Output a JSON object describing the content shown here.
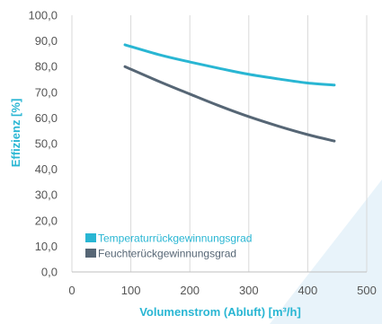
{
  "chart_data": {
    "type": "line",
    "xlabel": "Volumenstrom (Abluft) [m³/h]",
    "ylabel": "Effizienz [%]",
    "xlim": [
      0,
      500
    ],
    "ylim": [
      0,
      100
    ],
    "xticks": [
      "0",
      "100",
      "200",
      "300",
      "400",
      "500"
    ],
    "yticks": [
      "0,0",
      "10,0",
      "20,0",
      "30,0",
      "40,0",
      "50,0",
      "60,0",
      "70,0",
      "80,0",
      "90,0",
      "100,0"
    ],
    "grid": "vertical",
    "legend_position": "bottom-left",
    "series": [
      {
        "name": "Temperaturrückgewinnungsgrad",
        "color": "#29b6d3",
        "x": [
          90,
          150,
          200,
          250,
          300,
          350,
          400,
          445
        ],
        "y": [
          88.5,
          84.5,
          81.8,
          79.3,
          77.0,
          75.2,
          73.6,
          72.8
        ]
      },
      {
        "name": "Feuchterückgewinnungsgrad",
        "color": "#566675",
        "x": [
          90,
          150,
          200,
          250,
          300,
          350,
          400,
          445
        ],
        "y": [
          80.0,
          74.0,
          69.3,
          64.7,
          60.5,
          56.8,
          53.5,
          51.0
        ]
      }
    ]
  }
}
